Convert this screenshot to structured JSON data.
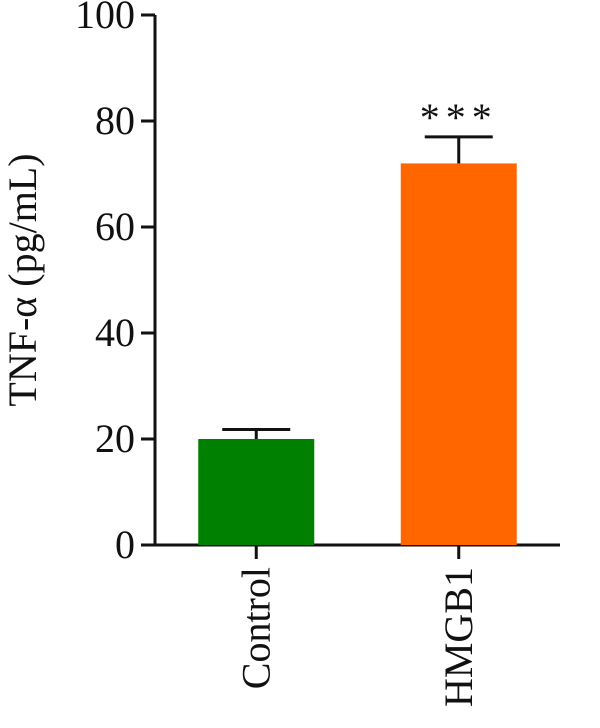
{
  "chart_data": {
    "type": "bar",
    "categories": [
      "Control",
      "HMGB1"
    ],
    "values": [
      20,
      72
    ],
    "errors": [
      1.8,
      5
    ],
    "colors": [
      "#008000",
      "#ff6600"
    ],
    "annotations": [
      "",
      "***"
    ],
    "ylabel": "TNF-α (pg/mL)",
    "xlabel": "",
    "ylim": [
      0,
      100
    ],
    "yticks": [
      0,
      20,
      40,
      60,
      80,
      100
    ],
    "grid": false,
    "legend": "none"
  }
}
